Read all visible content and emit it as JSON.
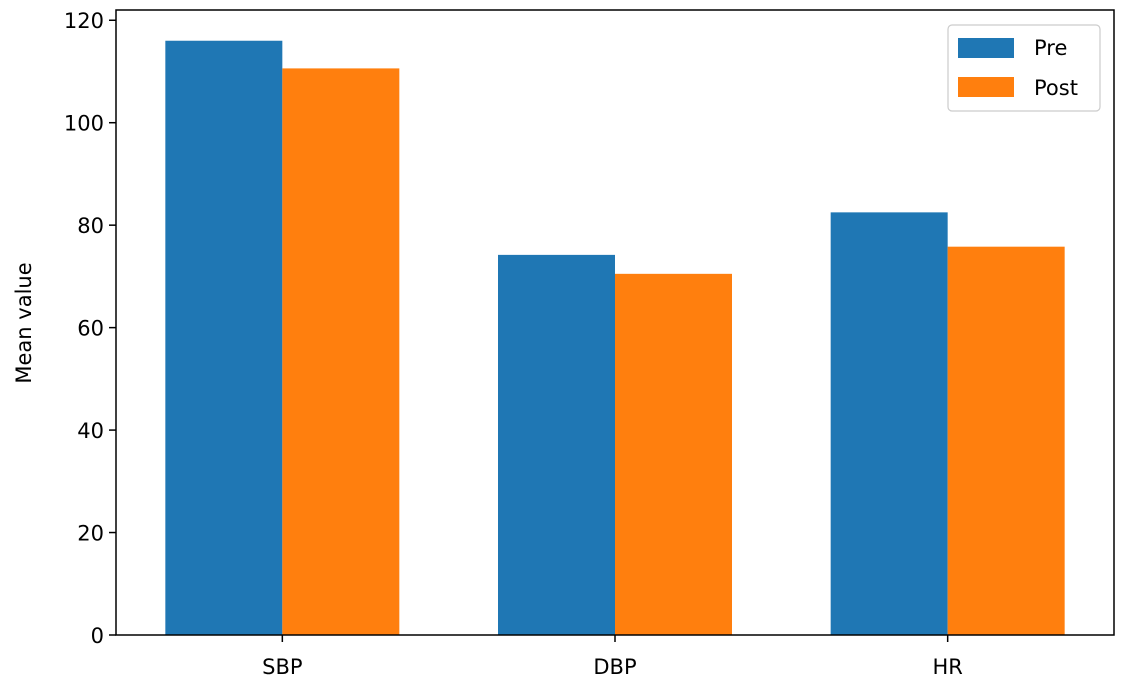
{
  "chart_data": {
    "type": "bar",
    "title": "",
    "xlabel": "",
    "ylabel": "Mean value",
    "categories": [
      "SBP",
      "DBP",
      "HR"
    ],
    "series": [
      {
        "name": "Pre",
        "color": "#1f77b4",
        "values": [
          116.0,
          74.2,
          82.5
        ]
      },
      {
        "name": "Post",
        "color": "#ff7f0e",
        "values": [
          110.6,
          70.5,
          75.8
        ]
      }
    ],
    "ylim": [
      0,
      122
    ],
    "yticks": [
      "0",
      "20",
      "40",
      "60",
      "80",
      "100",
      "120"
    ],
    "grid": false,
    "legend_position": "top-right"
  }
}
